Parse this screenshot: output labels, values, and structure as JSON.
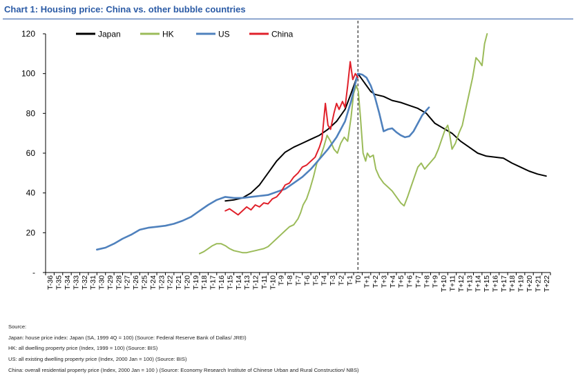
{
  "title": "Chart 1: Housing price: China vs. other bubble countries",
  "notes": {
    "heading": "Source:",
    "lines": [
      "Japan: house price index: Japan (SA, 1999 4Q = 100)  (Source: Federal Reserve Bank of Dallas/ JREI)",
      "HK: all dwelling property price (Index, 1999 = 100) (Source: BIS)",
      "US: all existing dwelling property price (Index, 2000 Jan = 100) (Source: BIS)",
      "China: overall residential property price (Index, 2000 Jan = 100 ) (Source: Economy Research Institute of Chinese Urban and Rural Construction/ NBS)"
    ]
  },
  "chart_data": {
    "type": "line",
    "title": "Chart 1: Housing price: China vs. other bubble countries",
    "xlabel": "",
    "ylabel": "",
    "ylim": [
      0,
      120
    ],
    "yticks": [
      0,
      20,
      40,
      60,
      80,
      100,
      120
    ],
    "ytick_labels": [
      "-",
      "20",
      "40",
      "60",
      "80",
      "100",
      "120"
    ],
    "categories": [
      "T-36",
      "T-35",
      "T-34",
      "T-33",
      "T-32",
      "T-31",
      "T-30",
      "T-29",
      "T-28",
      "T-27",
      "T-26",
      "T-25",
      "T-24",
      "T-23",
      "T-22",
      "T-21",
      "T-20",
      "T-19",
      "T-18",
      "T-17",
      "T-16",
      "T-15",
      "T-14",
      "T-13",
      "T-12",
      "T-11",
      "T-10",
      "T-9",
      "T-8",
      "T-7",
      "T-6",
      "T-5",
      "T-4",
      "T-3",
      "T-2",
      "T-1",
      "T0",
      "T+1",
      "T+2",
      "T+3",
      "T+4",
      "T+5",
      "T+6",
      "T+7",
      "T+8",
      "T+9",
      "T+10",
      "T+11",
      "T+12",
      "T+13",
      "T+14",
      "T+15",
      "T+16",
      "T+17",
      "T+18",
      "T+19",
      "T+20",
      "T+21",
      "T+22"
    ],
    "marker_line": {
      "x": 0,
      "style": "dashed"
    },
    "legend": {
      "position": "top-left",
      "orientation": "horizontal"
    },
    "grid": false,
    "series": [
      {
        "name": "Japan",
        "color": "#000000",
        "points": [
          [
            -15.5,
            36
          ],
          [
            -14.5,
            36.5
          ],
          [
            -13.5,
            37.5
          ],
          [
            -12.5,
            40
          ],
          [
            -11.5,
            44
          ],
          [
            -10.5,
            50
          ],
          [
            -9.5,
            56
          ],
          [
            -8.5,
            60.5
          ],
          [
            -7.5,
            63
          ],
          [
            -6.5,
            65
          ],
          [
            -5.5,
            67
          ],
          [
            -4.5,
            69
          ],
          [
            -3.5,
            72
          ],
          [
            -2.5,
            76
          ],
          [
            -1.5,
            82
          ],
          [
            -0.8,
            90
          ],
          [
            -0.3,
            96
          ],
          [
            0,
            100
          ],
          [
            0.5,
            97
          ],
          [
            1,
            94
          ],
          [
            1.5,
            91
          ],
          [
            2,
            89.5
          ],
          [
            3,
            88.5
          ],
          [
            4,
            86.5
          ],
          [
            5,
            85.5
          ],
          [
            6,
            84
          ],
          [
            7,
            82.5
          ],
          [
            8,
            80
          ],
          [
            9,
            75
          ],
          [
            10,
            72.5
          ],
          [
            11,
            70
          ],
          [
            12,
            66
          ],
          [
            13,
            63
          ],
          [
            14,
            60
          ],
          [
            15,
            58.5
          ],
          [
            16,
            58
          ],
          [
            17,
            57.5
          ],
          [
            18,
            55
          ],
          [
            19,
            53
          ],
          [
            20,
            51
          ],
          [
            21,
            49.5
          ],
          [
            22,
            48.5
          ]
        ]
      },
      {
        "name": "HK",
        "color": "#9bbb59",
        "points": [
          [
            -18.5,
            9.5
          ],
          [
            -18,
            10.5
          ],
          [
            -17.5,
            12
          ],
          [
            -17,
            13.5
          ],
          [
            -16.5,
            14.5
          ],
          [
            -16,
            14.5
          ],
          [
            -15.5,
            13.5
          ],
          [
            -15,
            12
          ],
          [
            -14.5,
            11
          ],
          [
            -14,
            10.5
          ],
          [
            -13.5,
            10
          ],
          [
            -13,
            10
          ],
          [
            -12.5,
            10.5
          ],
          [
            -12,
            11
          ],
          [
            -11.5,
            11.5
          ],
          [
            -11,
            12
          ],
          [
            -10.5,
            13
          ],
          [
            -10,
            15
          ],
          [
            -9.5,
            17
          ],
          [
            -9,
            19
          ],
          [
            -8.5,
            21
          ],
          [
            -8,
            23
          ],
          [
            -7.5,
            24
          ],
          [
            -7,
            27
          ],
          [
            -6.7,
            30
          ],
          [
            -6.4,
            34
          ],
          [
            -6,
            37
          ],
          [
            -5.6,
            42
          ],
          [
            -5.2,
            48
          ],
          [
            -4.8,
            55
          ],
          [
            -4.4,
            58
          ],
          [
            -4,
            63
          ],
          [
            -3.6,
            69
          ],
          [
            -3.2,
            66
          ],
          [
            -2.8,
            62
          ],
          [
            -2.4,
            60
          ],
          [
            -2,
            65
          ],
          [
            -1.6,
            68
          ],
          [
            -1.2,
            66
          ],
          [
            -0.8,
            78
          ],
          [
            -0.5,
            90
          ],
          [
            -0.2,
            94
          ],
          [
            0.05,
            91
          ],
          [
            0.3,
            78
          ],
          [
            0.6,
            60
          ],
          [
            0.9,
            56
          ],
          [
            1.1,
            60
          ],
          [
            1.4,
            58
          ],
          [
            1.8,
            59
          ],
          [
            2.1,
            52
          ],
          [
            2.5,
            48
          ],
          [
            3,
            45
          ],
          [
            3.5,
            43
          ],
          [
            4,
            41
          ],
          [
            4.5,
            38
          ],
          [
            5,
            35
          ],
          [
            5.4,
            33.5
          ],
          [
            5.8,
            38
          ],
          [
            6.2,
            43
          ],
          [
            6.6,
            48
          ],
          [
            7,
            53
          ],
          [
            7.4,
            55
          ],
          [
            7.8,
            52
          ],
          [
            8.2,
            54
          ],
          [
            8.6,
            56
          ],
          [
            9,
            58
          ],
          [
            9.4,
            62
          ],
          [
            9.8,
            67
          ],
          [
            10.2,
            72
          ],
          [
            10.5,
            74
          ],
          [
            10.7,
            70
          ],
          [
            11,
            62
          ],
          [
            11.4,
            65
          ],
          [
            11.8,
            70
          ],
          [
            12.2,
            74
          ],
          [
            12.6,
            82
          ],
          [
            13,
            90
          ],
          [
            13.4,
            98
          ],
          [
            13.8,
            108
          ],
          [
            14.2,
            106
          ],
          [
            14.5,
            104
          ],
          [
            14.8,
            115
          ],
          [
            15.1,
            120
          ]
        ]
      },
      {
        "name": "US",
        "color": "#4f81bd",
        "points": [
          [
            -30.5,
            11.5
          ],
          [
            -29.5,
            12.5
          ],
          [
            -28.5,
            14.5
          ],
          [
            -27.5,
            17
          ],
          [
            -26.5,
            19
          ],
          [
            -25.5,
            21.5
          ],
          [
            -24.5,
            22.5
          ],
          [
            -23.5,
            23
          ],
          [
            -22.5,
            23.5
          ],
          [
            -21.5,
            24.5
          ],
          [
            -20.5,
            26
          ],
          [
            -19.5,
            28
          ],
          [
            -18.5,
            31
          ],
          [
            -17.5,
            34
          ],
          [
            -16.5,
            36.5
          ],
          [
            -15.5,
            38
          ],
          [
            -14.5,
            37.5
          ],
          [
            -13.5,
            37.5
          ],
          [
            -12.5,
            38
          ],
          [
            -11.5,
            38.5
          ],
          [
            -10.5,
            39
          ],
          [
            -9.5,
            40.5
          ],
          [
            -8.5,
            42
          ],
          [
            -7.5,
            45
          ],
          [
            -6.5,
            48
          ],
          [
            -5.5,
            52
          ],
          [
            -4.5,
            57
          ],
          [
            -3.5,
            62
          ],
          [
            -2.5,
            68
          ],
          [
            -1.5,
            76
          ],
          [
            -0.8,
            86
          ],
          [
            -0.3,
            95
          ],
          [
            0,
            100
          ],
          [
            0.5,
            99.5
          ],
          [
            1,
            98
          ],
          [
            1.5,
            94
          ],
          [
            2,
            88
          ],
          [
            2.5,
            80
          ],
          [
            3,
            71
          ],
          [
            3.5,
            72
          ],
          [
            4,
            72.5
          ],
          [
            4.5,
            70.5
          ],
          [
            5,
            69
          ],
          [
            5.5,
            68
          ],
          [
            6,
            68.5
          ],
          [
            6.5,
            71
          ],
          [
            7,
            75
          ],
          [
            7.5,
            79
          ],
          [
            8,
            81.5
          ],
          [
            8.3,
            83
          ]
        ]
      },
      {
        "name": "China",
        "color": "#e0202a",
        "points": [
          [
            -15.5,
            31
          ],
          [
            -15,
            32
          ],
          [
            -14.5,
            30.5
          ],
          [
            -14,
            29
          ],
          [
            -13.5,
            31
          ],
          [
            -13,
            33
          ],
          [
            -12.5,
            31.5
          ],
          [
            -12,
            34
          ],
          [
            -11.5,
            33
          ],
          [
            -11,
            35
          ],
          [
            -10.5,
            34.5
          ],
          [
            -10,
            37
          ],
          [
            -9.5,
            38
          ],
          [
            -9,
            40.5
          ],
          [
            -8.5,
            44
          ],
          [
            -8,
            45
          ],
          [
            -7.5,
            48
          ],
          [
            -7,
            50
          ],
          [
            -6.5,
            53
          ],
          [
            -6,
            54
          ],
          [
            -5.5,
            56
          ],
          [
            -5,
            58
          ],
          [
            -4.5,
            63
          ],
          [
            -4.2,
            67
          ],
          [
            -3.8,
            85
          ],
          [
            -3.5,
            74
          ],
          [
            -3.2,
            72
          ],
          [
            -2.8,
            80
          ],
          [
            -2.5,
            85
          ],
          [
            -2.2,
            82
          ],
          [
            -1.8,
            86
          ],
          [
            -1.5,
            83
          ],
          [
            -1.2,
            94
          ],
          [
            -0.9,
            106
          ],
          [
            -0.6,
            97
          ],
          [
            -0.3,
            100
          ],
          [
            0,
            98
          ]
        ]
      }
    ]
  }
}
